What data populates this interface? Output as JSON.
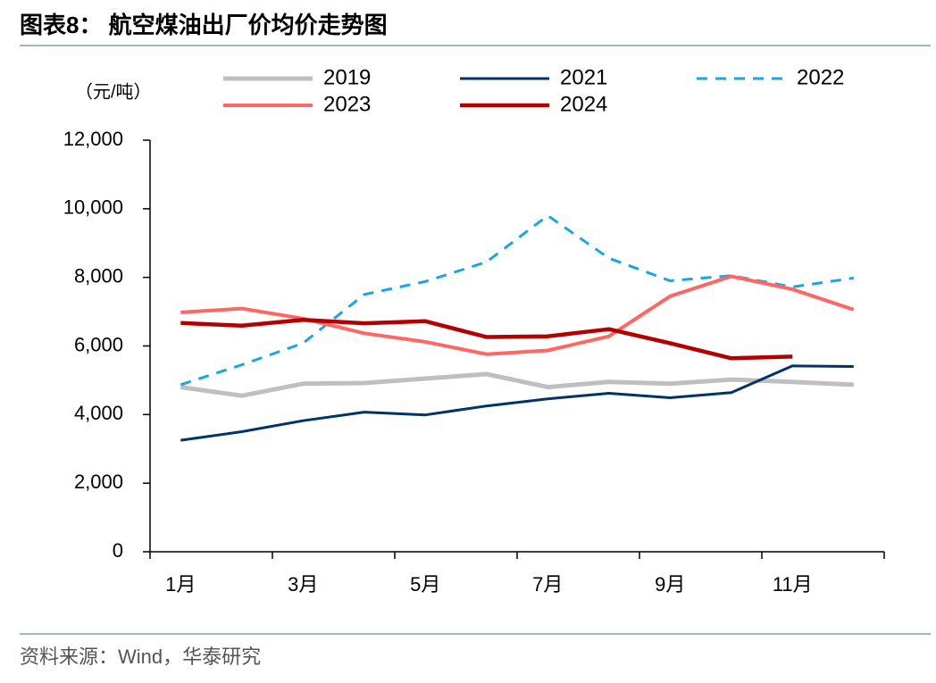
{
  "chart_data": {
    "type": "line",
    "title": "图表8： 航空煤油出厂价均价走势图",
    "y_label": "（元/吨）",
    "source": "资料来源：Wind，华泰研究",
    "categories": [
      "1月",
      null,
      "3月",
      null,
      "5月",
      null,
      "7月",
      null,
      "9月",
      null,
      "11月",
      null
    ],
    "ylim": [
      0,
      12000
    ],
    "yticks": [
      0,
      {
        "value": 2000,
        "label": "2,000"
      },
      {
        "value": 4000,
        "label": "4,000"
      },
      {
        "value": 6000,
        "label": "6,000"
      },
      {
        "value": 8000,
        "label": "8,000"
      },
      {
        "value": 10000,
        "label": "10,000"
      },
      {
        "value": 12000,
        "label": "12,000"
      }
    ],
    "series": [
      {
        "name": "2019",
        "color": "#bfbfbf",
        "values": [
          4800,
          4550,
          4900,
          4920,
          5050,
          5180,
          4800,
          4950,
          4900,
          5020,
          4950,
          4870
        ]
      },
      {
        "name": "2021",
        "color": "#003366",
        "values": [
          3250,
          3500,
          3820,
          4070,
          3990,
          4250,
          4460,
          4620,
          4490,
          4640,
          5420,
          5400
        ]
      },
      {
        "name": "2022",
        "color": "#1aa6df",
        "dashed": true,
        "values": [
          4870,
          5450,
          6080,
          7500,
          7880,
          8450,
          9800,
          8560,
          7900,
          8050,
          7720,
          7980
        ]
      },
      {
        "name": "2023",
        "color": "#ff6666",
        "values": [
          6980,
          7090,
          6800,
          6370,
          6120,
          5760,
          5870,
          6280,
          7450,
          8030,
          7650,
          7060
        ]
      },
      {
        "name": "2024",
        "color": "#b30000",
        "values": [
          6670,
          6590,
          6760,
          6660,
          6720,
          6260,
          6280,
          6490,
          6080,
          5640,
          5690,
          null
        ]
      }
    ]
  }
}
